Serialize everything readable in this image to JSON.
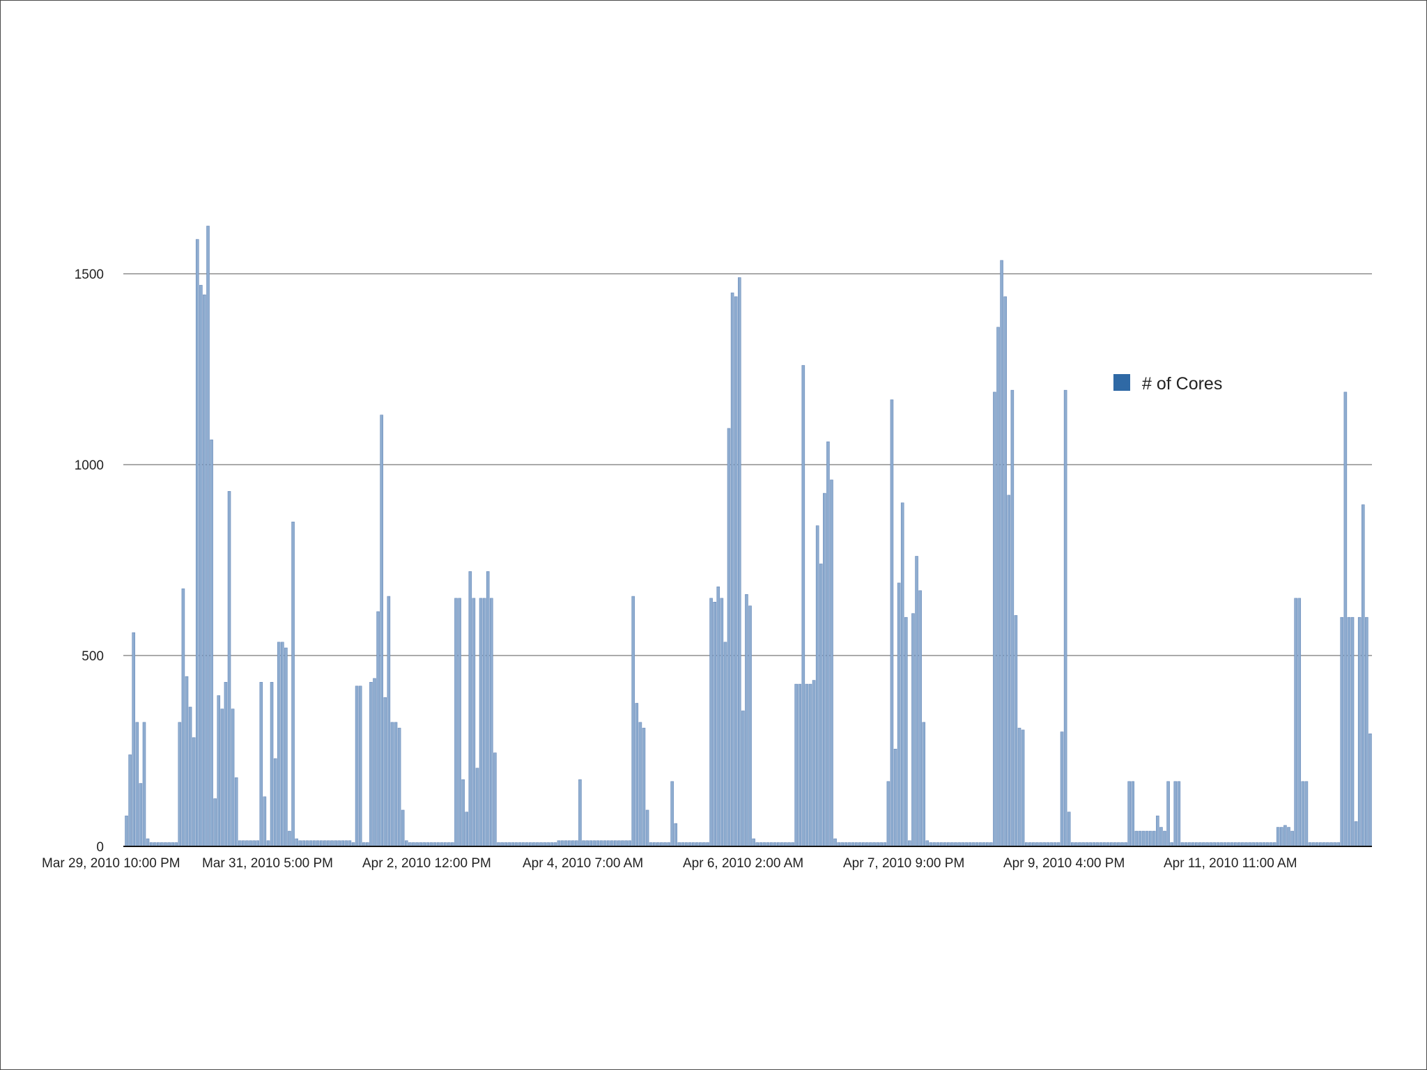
{
  "chart_data": {
    "type": "bar",
    "title": "",
    "xlabel": "",
    "ylabel": "",
    "ylim": [
      0,
      1600
    ],
    "yticks": [
      0,
      500,
      1000,
      1500
    ],
    "grid": true,
    "legend_position": "top-right",
    "x_tick_labels": [
      "Mar 29, 2010 10:00 PM",
      "Mar 31, 2010 5:00 PM",
      "Apr 2, 2010 12:00 PM",
      "Apr 4, 2010 7:00 AM",
      "Apr 6, 2010 2:00 AM",
      "Apr 7, 2010 9:00 PM",
      "Apr 9, 2010 4:00 PM",
      "Apr 11, 2010 11:00 AM"
    ],
    "colors": {
      "bar": "#8fadd0",
      "bar_edge": "#6688b8",
      "legend_swatch": "#2f69a5",
      "gridline": "#555555"
    },
    "series": [
      {
        "name": "# of Cores",
        "values": [
          80,
          240,
          560,
          325,
          165,
          325,
          20,
          10,
          10,
          10,
          10,
          10,
          10,
          10,
          10,
          325,
          675,
          445,
          365,
          285,
          1590,
          1470,
          1445,
          1625,
          1065,
          125,
          395,
          360,
          430,
          930,
          360,
          180,
          15,
          15,
          15,
          15,
          15,
          15,
          430,
          130,
          15,
          430,
          230,
          535,
          535,
          520,
          40,
          850,
          20,
          15,
          15,
          15,
          15,
          15,
          15,
          15,
          15,
          15,
          15,
          15,
          15,
          15,
          15,
          15,
          10,
          420,
          420,
          10,
          10,
          430,
          440,
          615,
          1130,
          390,
          655,
          325,
          325,
          310,
          95,
          15,
          10,
          10,
          10,
          10,
          10,
          10,
          10,
          10,
          10,
          10,
          10,
          10,
          10,
          650,
          650,
          175,
          90,
          720,
          650,
          205,
          650,
          650,
          720,
          650,
          245,
          10,
          10,
          10,
          10,
          10,
          10,
          10,
          10,
          10,
          10,
          10,
          10,
          10,
          10,
          10,
          10,
          10,
          15,
          15,
          15,
          15,
          15,
          15,
          175,
          15,
          15,
          15,
          15,
          15,
          15,
          15,
          15,
          15,
          15,
          15,
          15,
          15,
          15,
          655,
          375,
          325,
          310,
          95,
          10,
          10,
          10,
          10,
          10,
          10,
          170,
          60,
          10,
          10,
          10,
          10,
          10,
          10,
          10,
          10,
          10,
          650,
          640,
          680,
          650,
          535,
          1095,
          1450,
          1440,
          1490,
          355,
          660,
          630,
          20,
          10,
          10,
          10,
          10,
          10,
          10,
          10,
          10,
          10,
          10,
          10,
          425,
          425,
          1260,
          425,
          425,
          435,
          840,
          740,
          925,
          1060,
          960,
          20,
          10,
          10,
          10,
          10,
          10,
          10,
          10,
          10,
          10,
          10,
          10,
          10,
          10,
          10,
          170,
          1170,
          255,
          690,
          900,
          600,
          15,
          610,
          760,
          670,
          325,
          15,
          10,
          10,
          10,
          10,
          10,
          10,
          10,
          10,
          10,
          10,
          10,
          10,
          10,
          10,
          10,
          10,
          10,
          10,
          1190,
          1360,
          1535,
          1440,
          920,
          1195,
          605,
          310,
          305,
          10,
          10,
          10,
          10,
          10,
          10,
          10,
          10,
          10,
          10,
          300,
          1195,
          90,
          10,
          10,
          10,
          10,
          10,
          10,
          10,
          10,
          10,
          10,
          10,
          10,
          10,
          10,
          10,
          10,
          170,
          170,
          40,
          40,
          40,
          40,
          40,
          40,
          80,
          50,
          40,
          170,
          10,
          170,
          170,
          10,
          10,
          10,
          10,
          10,
          10,
          10,
          10,
          10,
          10,
          10,
          10,
          10,
          10,
          10,
          10,
          10,
          10,
          10,
          10,
          10,
          10,
          10,
          10,
          10,
          10,
          10,
          50,
          50,
          55,
          50,
          40,
          650,
          650,
          170,
          170,
          10,
          10,
          10,
          10,
          10,
          10,
          10,
          10,
          10,
          600,
          1190,
          600,
          600,
          65,
          600,
          895,
          600,
          295
        ]
      }
    ]
  }
}
